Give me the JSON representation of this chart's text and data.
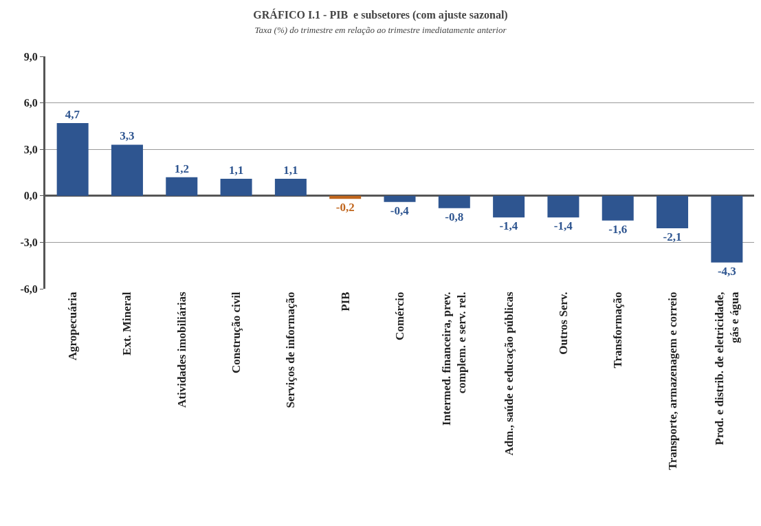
{
  "chart_data": {
    "type": "bar",
    "title": "GRÁFICO I.1 - PIB  e subsetores (com ajuste sazonal)",
    "subtitle": "Taxa (%) do trimestre em relação ao trimestre imediatamente anterior",
    "categories": [
      "Agropecuária",
      "Ext. Mineral",
      "Atividades imobiliárias",
      "Construção civil",
      "Serviços de informação",
      "PIB",
      "Comércio",
      "Intermed. financeira, prev. complem. e serv. rel.",
      "Adm., saúde e educação públicas",
      "Outros Serv.",
      "Transformação",
      "Transporte, armazenagem e correio",
      "Prod. e distrib. de eletricidade, gás e água"
    ],
    "values": [
      4.7,
      3.3,
      1.2,
      1.1,
      1.1,
      -0.2,
      -0.4,
      -0.8,
      -1.4,
      -1.4,
      -1.6,
      -2.1,
      -4.3
    ],
    "value_labels": [
      "4,7",
      "3,3",
      "1,2",
      "1,1",
      "1,1",
      "-0,2",
      "-0,4",
      "-0,8",
      "-1,4",
      "-1,4",
      "-1,6",
      "-2,1",
      "-4,3"
    ],
    "colors": [
      "#2e5590",
      "#2e5590",
      "#2e5590",
      "#2e5590",
      "#2e5590",
      "#c0651c",
      "#2e5590",
      "#2e5590",
      "#2e5590",
      "#2e5590",
      "#2e5590",
      "#2e5590",
      "#2e5590"
    ],
    "ylim": [
      -6,
      9
    ],
    "yticks": [
      {
        "value": -6,
        "label": "-6,0"
      },
      {
        "value": -3,
        "label": "-3,0"
      },
      {
        "value": 0,
        "label": "0,0"
      },
      {
        "value": 3,
        "label": "3,0"
      },
      {
        "value": 6,
        "label": "6,0"
      },
      {
        "value": 9,
        "label": "9,0"
      }
    ],
    "grid": "y"
  }
}
